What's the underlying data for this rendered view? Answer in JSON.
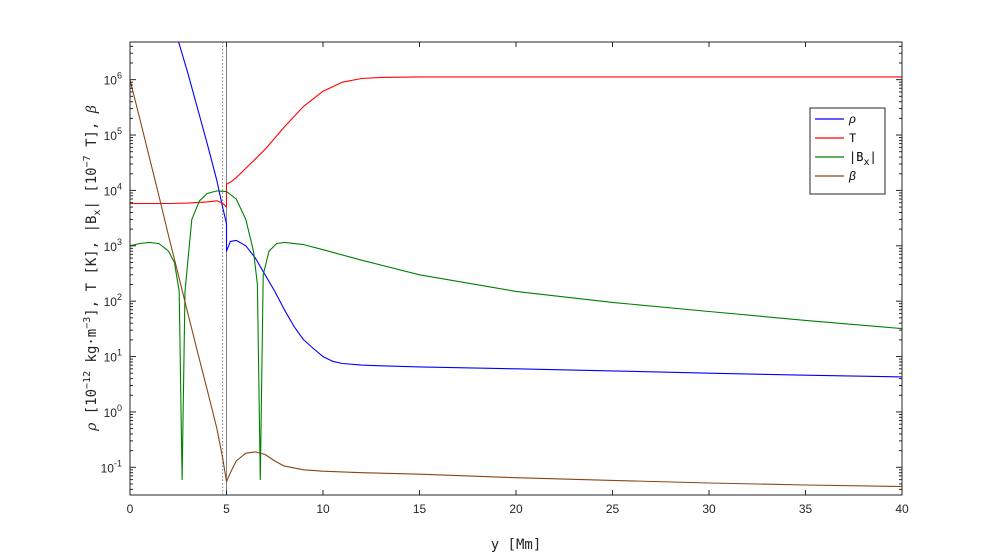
{
  "chart_data": {
    "type": "line",
    "xlabel": "y  [Mm]",
    "ylabel_parts": [
      "ρ",
      " [10",
      "−12",
      " kg·m",
      "−3",
      "],  T [K],  |B",
      "x",
      "|  [10",
      "−7",
      " T],  ",
      "β"
    ],
    "xlim": [
      0,
      40
    ],
    "ylim_log10": [
      -1.5,
      6.68
    ],
    "log_y": true,
    "grid": false,
    "legend_placement": "top-right",
    "x_ticks": [
      0,
      5,
      10,
      15,
      20,
      25,
      30,
      35,
      40
    ],
    "x_tick_labels": [
      "0",
      "5",
      "10",
      "15",
      "20",
      "25",
      "30",
      "35",
      "40"
    ],
    "y_ticks": [
      {
        "base": "10",
        "exp": "-1",
        "value": 0.1
      },
      {
        "base": "10",
        "exp": "0",
        "value": 1
      },
      {
        "base": "10",
        "exp": "1",
        "value": 10
      },
      {
        "base": "10",
        "exp": "2",
        "value": 100
      },
      {
        "base": "10",
        "exp": "3",
        "value": 1000
      },
      {
        "base": "10",
        "exp": "4",
        "value": 10000
      },
      {
        "base": "10",
        "exp": "5",
        "value": 100000
      },
      {
        "base": "10",
        "exp": "6",
        "value": 1000000
      }
    ],
    "vertical_lines": [
      {
        "x": 4.8,
        "style": "dotted",
        "color": "#808080"
      },
      {
        "x": 5.0,
        "style": "solid",
        "color": "#808080"
      }
    ],
    "series": [
      {
        "name": "ρ",
        "color": "#0000ff",
        "x": [
          2.5,
          3,
          3.5,
          4,
          4.5,
          4.8,
          5.0,
          5.0,
          5.2,
          5.5,
          6,
          6.5,
          7,
          7.5,
          8,
          8.5,
          9,
          9.5,
          10,
          10.5,
          11,
          12,
          13,
          15,
          20,
          25,
          30,
          35,
          40
        ],
        "y": [
          5000000,
          1300000,
          300000,
          70000,
          15000,
          5000,
          2500,
          800,
          1200,
          1250,
          1000,
          600,
          300,
          150,
          70,
          35,
          20,
          14,
          10,
          8.2,
          7.5,
          7,
          6.8,
          6.5,
          6,
          5.5,
          5,
          4.6,
          4.3
        ]
      },
      {
        "name": "T",
        "color": "#ff0000",
        "x": [
          0,
          1,
          2,
          3,
          4,
          4.5,
          4.8,
          5.0,
          5.0,
          5.2,
          5.5,
          6,
          7,
          8,
          9,
          10,
          11,
          12,
          13,
          15,
          20,
          25,
          30,
          35,
          40
        ],
        "y": [
          5800,
          5800,
          5800,
          5900,
          6200,
          6500,
          5900,
          5000,
          13000,
          14000,
          17000,
          25000,
          55000,
          140000,
          330000,
          620000,
          900000,
          1050000,
          1100000,
          1120000,
          1120000,
          1120000,
          1120000,
          1120000,
          1120000
        ]
      },
      {
        "name": "|Bx|",
        "color": "#008000",
        "x": [
          0,
          0.5,
          1,
          1.5,
          2,
          2.3,
          2.55,
          2.7,
          2.85,
          3.2,
          3.6,
          4.0,
          4.5,
          5.0,
          5.5,
          6.0,
          6.4,
          6.6,
          6.75,
          6.9,
          7.2,
          7.6,
          8,
          9,
          10,
          12,
          15,
          20,
          25,
          30,
          35,
          40
        ],
        "y": [
          1000,
          1100,
          1150,
          1100,
          800,
          500,
          150,
          0.06,
          150,
          3000,
          6500,
          8800,
          9800,
          9500,
          7000,
          3000,
          800,
          200,
          0.06,
          300,
          800,
          1100,
          1150,
          1050,
          850,
          550,
          300,
          150,
          95,
          65,
          45,
          32
        ]
      },
      {
        "name": "β",
        "color": "#8b4513",
        "x": [
          0,
          0.5,
          1,
          1.5,
          2,
          2.5,
          3,
          3.5,
          4,
          4.5,
          4.8,
          5.0,
          5.2,
          5.5,
          6,
          6.5,
          7,
          7.5,
          8,
          9,
          10,
          12,
          15,
          20,
          25,
          30,
          35,
          40
        ],
        "y": [
          1000000,
          200000,
          40000,
          8000,
          1500,
          300,
          60,
          12,
          2.5,
          0.5,
          0.15,
          0.055,
          0.08,
          0.13,
          0.18,
          0.19,
          0.17,
          0.13,
          0.105,
          0.09,
          0.085,
          0.08,
          0.075,
          0.065,
          0.058,
          0.052,
          0.048,
          0.045
        ]
      }
    ]
  },
  "legend": {
    "items": [
      {
        "label": "ρ",
        "sub": "",
        "color": "#0000ff",
        "style": "italic"
      },
      {
        "label": "T",
        "sub": "",
        "color": "#ff0000",
        "style": "plain"
      },
      {
        "label": "|B",
        "sub": "x",
        "color": "#008000",
        "style": "mono"
      },
      {
        "label": "β",
        "sub": "",
        "color": "#8b4513",
        "style": "italic"
      }
    ]
  }
}
